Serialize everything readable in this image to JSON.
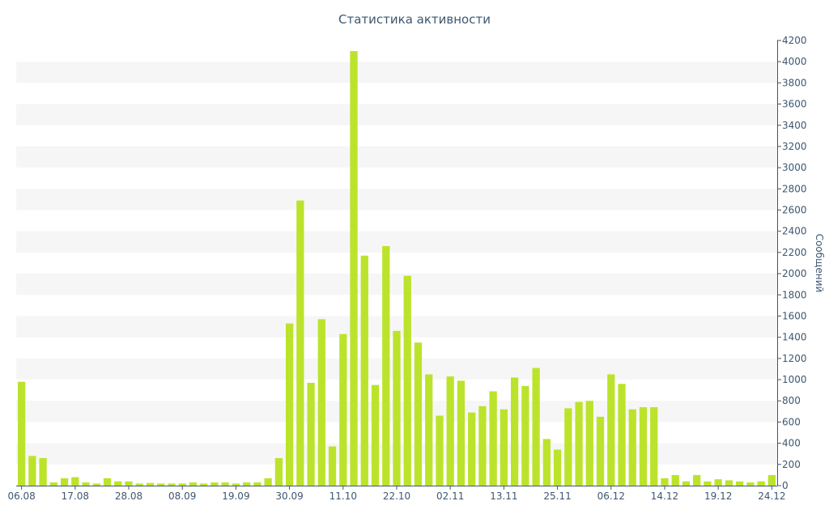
{
  "chart_data": {
    "type": "bar",
    "title": "Статистика активности",
    "ylabel": "Сообщений",
    "ylim": [
      0,
      4200
    ],
    "yticks": [
      0,
      200,
      400,
      600,
      800,
      1000,
      1200,
      1400,
      1600,
      1800,
      2000,
      2200,
      2400,
      2600,
      2800,
      3000,
      3200,
      3400,
      3600,
      3800,
      4000,
      4200
    ],
    "xtick_labels": [
      "06.08",
      "17.08",
      "28.08",
      "08.09",
      "19.09",
      "30.09",
      "11.10",
      "22.10",
      "02.11",
      "13.11",
      "25.11",
      "06.12",
      "14.12",
      "19.12",
      "24.12"
    ],
    "values": [
      980,
      280,
      260,
      30,
      70,
      80,
      30,
      20,
      70,
      40,
      40,
      20,
      25,
      20,
      20,
      20,
      30,
      20,
      30,
      30,
      20,
      30,
      30,
      70,
      260,
      1530,
      2690,
      970,
      1570,
      370,
      1430,
      4100,
      2170,
      950,
      2260,
      1460,
      1980,
      1350,
      1050,
      660,
      1030,
      990,
      690,
      750,
      890,
      720,
      1020,
      940,
      1110,
      440,
      340,
      730,
      790,
      800,
      650,
      1050,
      960,
      720,
      740,
      740,
      70,
      100,
      40,
      100,
      40,
      60,
      50,
      40,
      30,
      40,
      100
    ],
    "grid": "alternating horizontal bands",
    "colors": {
      "bar": "#bce32b",
      "band": "#f6f6f6",
      "axis": "#3e576f"
    }
  }
}
